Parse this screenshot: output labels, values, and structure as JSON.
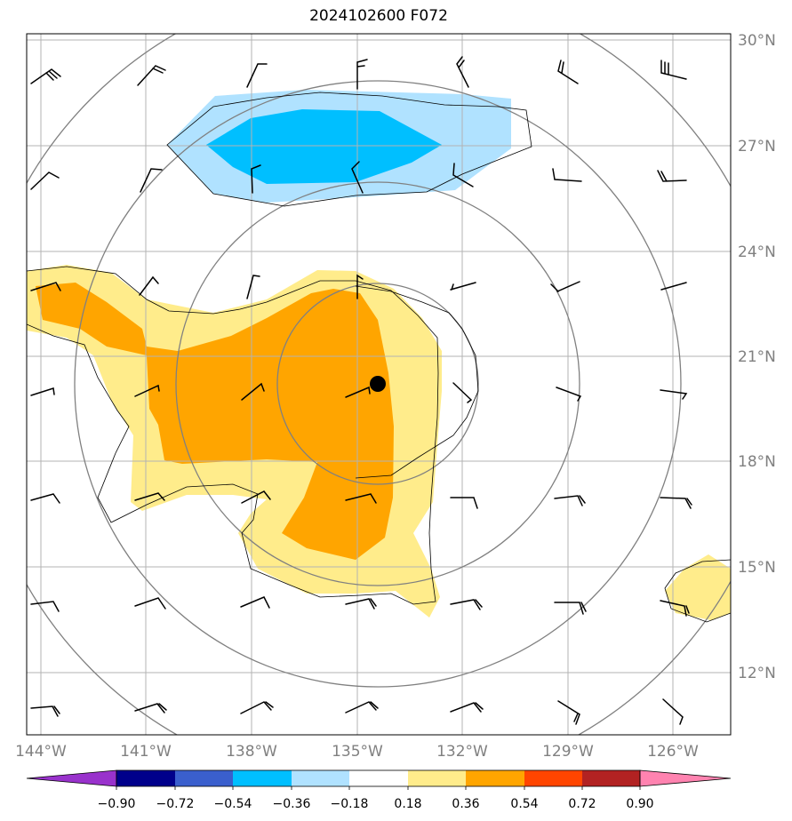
{
  "title": "2024102600 F072",
  "map": {
    "lon_labels": [
      "144°W",
      "141°W",
      "138°W",
      "135°W",
      "132°W",
      "129°W",
      "126°W"
    ],
    "lat_labels": [
      "30°N",
      "27°N",
      "24°N",
      "21°N",
      "18°N",
      "15°N",
      "12°N"
    ],
    "gridlines": true,
    "center_marker": "storm-center-dot",
    "range_rings": 4,
    "wind_barbs": true
  },
  "colorbar": {
    "tick_labels": [
      "−0.90",
      "−0.72",
      "−0.54",
      "−0.36",
      "−0.18",
      "0.18",
      "0.36",
      "0.54",
      "0.72",
      "0.90"
    ],
    "colors": [
      "#9932cc",
      "#00008b",
      "#3a5fcd",
      "#00bfff",
      "#b0e2ff",
      "#ffffff",
      "#ffec8b",
      "#ffa500",
      "#ff4500",
      "#b22222",
      "#ff83b0"
    ],
    "extend": "both"
  }
}
